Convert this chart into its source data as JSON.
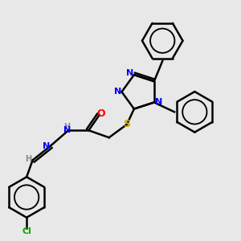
{
  "background_color": "#e8e8e8",
  "bond_color": "#000000",
  "bond_lw": 1.8,
  "atom_colors": {
    "N": "#0000ff",
    "S": "#ccaa00",
    "O": "#ff0000",
    "Cl": "#00aa00",
    "H": "#888888",
    "C": "#000000"
  },
  "font_size": 8,
  "fig_size": [
    3.0,
    3.0
  ],
  "dpi": 100
}
